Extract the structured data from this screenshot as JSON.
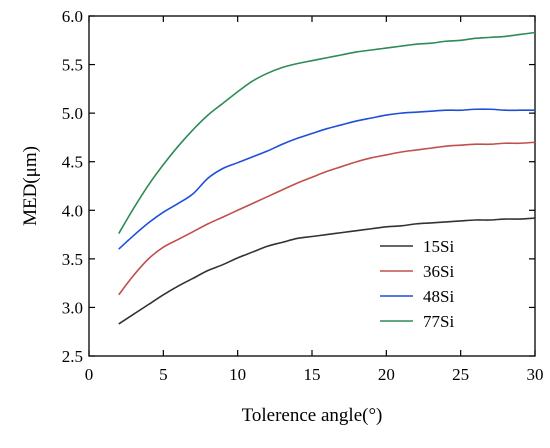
{
  "chart_data": {
    "type": "line",
    "title": "",
    "xlabel": "Tolerence angle(°)",
    "ylabel": "MED(μm)",
    "xlim": [
      0,
      30
    ],
    "ylim": [
      2.5,
      6.0
    ],
    "xticks": [
      0,
      5,
      10,
      15,
      20,
      25,
      30
    ],
    "yticks": [
      2.5,
      3.0,
      3.5,
      4.0,
      4.5,
      5.0,
      5.5,
      6.0
    ],
    "xtick_labels": [
      "0",
      "5",
      "10",
      "15",
      "20",
      "25",
      "30"
    ],
    "ytick_labels": [
      "2.5",
      "3.0",
      "3.5",
      "4.0",
      "4.5",
      "5.0",
      "5.5",
      "6.0"
    ],
    "grid": false,
    "legend_position": "bottom-right",
    "x": [
      2,
      3,
      4,
      5,
      6,
      7,
      8,
      9,
      10,
      11,
      12,
      13,
      14,
      15,
      16,
      17,
      18,
      19,
      20,
      21,
      22,
      23,
      24,
      25,
      26,
      27,
      28,
      29,
      30
    ],
    "series": [
      {
        "name": "15Si",
        "color": "#333333",
        "values": [
          2.83,
          2.93,
          3.03,
          3.13,
          3.22,
          3.3,
          3.38,
          3.44,
          3.51,
          3.57,
          3.63,
          3.67,
          3.71,
          3.73,
          3.75,
          3.77,
          3.79,
          3.81,
          3.83,
          3.84,
          3.86,
          3.87,
          3.88,
          3.89,
          3.9,
          3.9,
          3.91,
          3.91,
          3.92
        ]
      },
      {
        "name": "36Si",
        "color": "#c0504d",
        "values": [
          3.13,
          3.33,
          3.5,
          3.62,
          3.7,
          3.78,
          3.86,
          3.93,
          4.0,
          4.07,
          4.14,
          4.21,
          4.28,
          4.34,
          4.4,
          4.45,
          4.5,
          4.54,
          4.57,
          4.6,
          4.62,
          4.64,
          4.66,
          4.67,
          4.68,
          4.68,
          4.69,
          4.69,
          4.7
        ]
      },
      {
        "name": "48Si",
        "color": "#1f4fd8",
        "values": [
          3.6,
          3.74,
          3.87,
          3.98,
          4.07,
          4.17,
          4.33,
          4.43,
          4.49,
          4.55,
          4.61,
          4.68,
          4.74,
          4.79,
          4.84,
          4.88,
          4.92,
          4.95,
          4.98,
          5.0,
          5.01,
          5.02,
          5.03,
          5.03,
          5.04,
          5.04,
          5.03,
          5.03,
          5.03
        ]
      },
      {
        "name": "77Si",
        "color": "#2e8b57",
        "values": [
          3.76,
          4.02,
          4.26,
          4.47,
          4.66,
          4.83,
          4.98,
          5.1,
          5.22,
          5.33,
          5.41,
          5.47,
          5.51,
          5.54,
          5.57,
          5.6,
          5.63,
          5.65,
          5.67,
          5.69,
          5.71,
          5.72,
          5.74,
          5.75,
          5.77,
          5.78,
          5.79,
          5.81,
          5.83
        ]
      }
    ]
  }
}
